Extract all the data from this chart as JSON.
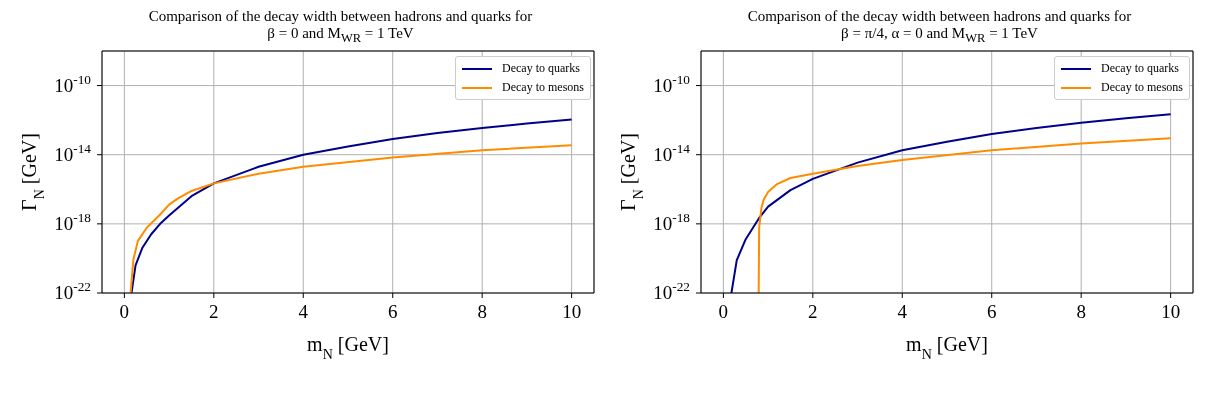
{
  "chart_data": [
    {
      "type": "line",
      "title": "Comparison of the decay width between hadrons and quarks for",
      "subtitle": "β = 0 and M$_{W}$$_{R}$ = 1 TeV",
      "xlabel": "m$_{N}$ [GeV]",
      "ylabel": "Γ$_{N}$ [GeV]",
      "xlim": [
        -0.5,
        10.5
      ],
      "xticks": [
        0,
        2,
        4,
        6,
        8,
        10
      ],
      "ylim": [
        1e-22,
        1e-08
      ],
      "yticks": [
        {
          "value": 1e-22,
          "label": "10$^{-22}$"
        },
        {
          "value": 1e-18,
          "label": "10$^{-18}$"
        },
        {
          "value": 1e-14,
          "label": "10$^{-14}$"
        },
        {
          "value": 1e-10,
          "label": "10$^{-10}$"
        }
      ],
      "log": "y",
      "grid": true,
      "legend": "top right",
      "line_style": "solid",
      "series": [
        {
          "name": "Decay to quarks",
          "color": "#00008b",
          "x": [
            0.16,
            0.25,
            0.4,
            0.6,
            0.8,
            1.0,
            1.5,
            2,
            3,
            4,
            5,
            6,
            7,
            8,
            9,
            10
          ],
          "values": [
            1e-22,
            4e-21,
            4e-20,
            2.5e-19,
            1e-18,
            3e-18,
            4e-17,
            2.2e-16,
            2e-15,
            1e-14,
            3e-14,
            8e-14,
            1.8e-13,
            3.5e-13,
            6.3e-13,
            1.1e-12
          ]
        },
        {
          "name": "Decay to mesons",
          "color": "#ff8c00",
          "x": [
            0.14,
            0.2,
            0.3,
            0.5,
            0.8,
            1.0,
            1.2,
            1.5,
            2,
            3,
            4,
            6,
            8,
            10
          ],
          "values": [
            1e-22,
            8e-21,
            1e-19,
            6e-19,
            3.5e-18,
            1.3e-17,
            3e-17,
            8e-17,
            2.2e-16,
            8e-16,
            2e-15,
            7e-15,
            1.8e-14,
            3.5e-14
          ]
        }
      ]
    },
    {
      "type": "line",
      "title": "Comparison of the decay width between hadrons and quarks for",
      "subtitle": "β = π/4, α = 0 and M$_{W}$$_{R}$ = 1 TeV",
      "xlabel": "m$_{N}$ [GeV]",
      "ylabel": "Γ$_{N}$ [GeV]",
      "xlim": [
        -0.5,
        10.5
      ],
      "xticks": [
        0,
        2,
        4,
        6,
        8,
        10
      ],
      "ylim": [
        1e-22,
        1e-08
      ],
      "yticks": [
        {
          "value": 1e-22,
          "label": "10$^{-22}$"
        },
        {
          "value": 1e-18,
          "label": "10$^{-18}$"
        },
        {
          "value": 1e-14,
          "label": "10$^{-14}$"
        },
        {
          "value": 1e-10,
          "label": "10$^{-10}$"
        }
      ],
      "log": "y",
      "grid": true,
      "legend": "top right",
      "line_style": "solid",
      "series": [
        {
          "name": "Decay to quarks",
          "color": "#00008b",
          "x": [
            0.18,
            0.3,
            0.5,
            0.8,
            1.0,
            1.5,
            2,
            3,
            4,
            5,
            6,
            7,
            8,
            9,
            10
          ],
          "values": [
            1e-22,
            8e-21,
            1.3e-19,
            2.2e-18,
            1e-17,
            9e-17,
            4e-16,
            3.5e-15,
            1.8e-14,
            5.6e-14,
            1.6e-13,
            3.5e-13,
            7e-13,
            1.3e-12,
            2.2e-12
          ]
        },
        {
          "name": "Decay to mesons",
          "color": "#ff8c00",
          "x": [
            0.79,
            0.8,
            0.85,
            0.9,
            1.0,
            1.2,
            1.5,
            2,
            3,
            4,
            6,
            8,
            10
          ],
          "values": [
            1e-22,
            6e-19,
            8e-18,
            2.5e-17,
            7e-17,
            2e-16,
            4.5e-16,
            8e-16,
            2.2e-15,
            5e-15,
            1.8e-14,
            4.5e-14,
            9e-14
          ]
        }
      ]
    }
  ]
}
